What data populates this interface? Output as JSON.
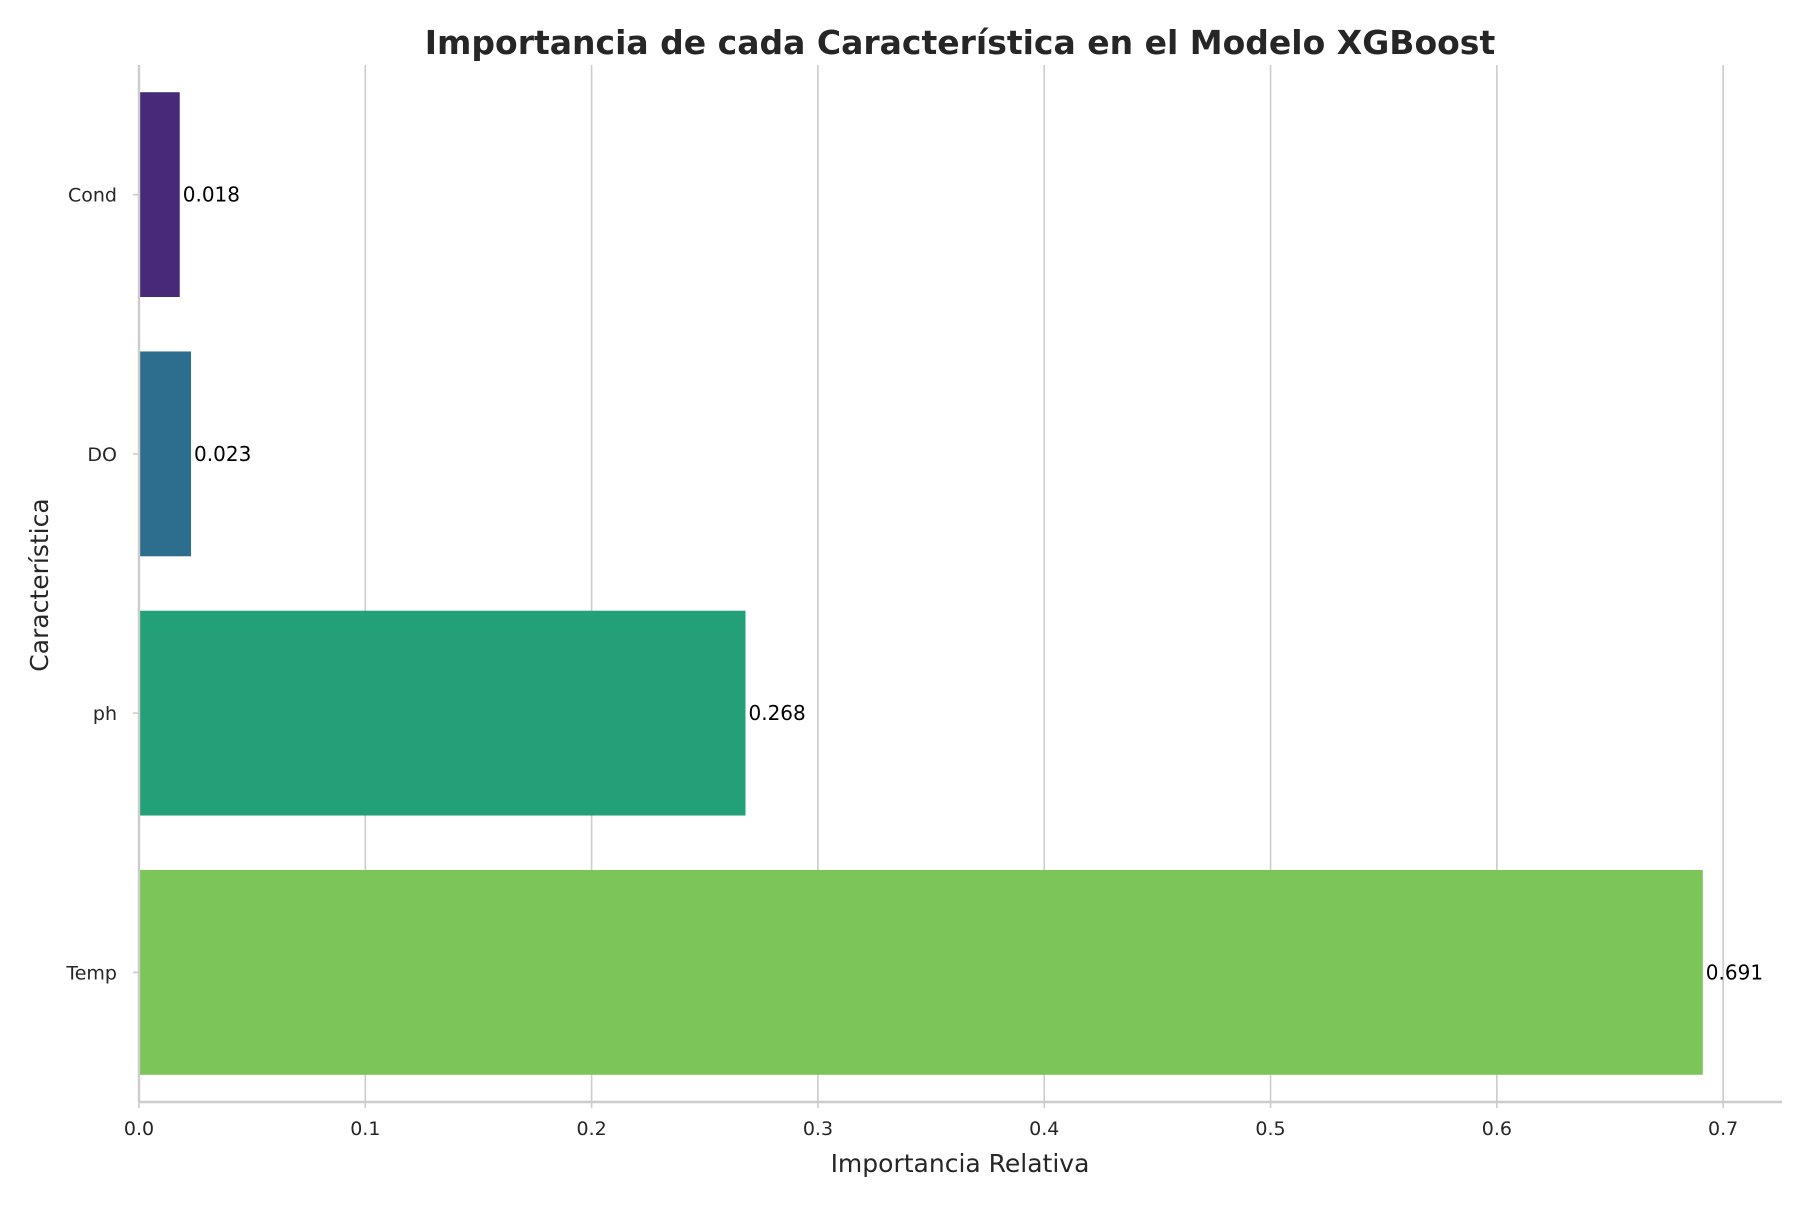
{
  "chart_data": {
    "type": "bar",
    "orientation": "horizontal",
    "title": "Importancia de cada Característica en el Modelo XGBoost",
    "xlabel": "Importancia Relativa",
    "ylabel": "Característica",
    "categories": [
      "Cond",
      "DO",
      "ph",
      "Temp"
    ],
    "values": [
      0.018,
      0.023,
      0.268,
      0.691
    ],
    "data_labels": [
      "0.018",
      "0.023",
      "0.268",
      "0.691"
    ],
    "colors": [
      "#482979",
      "#2d6e8e",
      "#24a079",
      "#7cc659"
    ],
    "xlim": [
      0,
      0.726
    ],
    "xticks": [
      0.0,
      0.1,
      0.2,
      0.3,
      0.4,
      0.5,
      0.6,
      0.7
    ],
    "xtick_labels": [
      "0.0",
      "0.1",
      "0.2",
      "0.3",
      "0.4",
      "0.5",
      "0.6",
      "0.7"
    ],
    "grid": "vertical",
    "legend": "none"
  }
}
